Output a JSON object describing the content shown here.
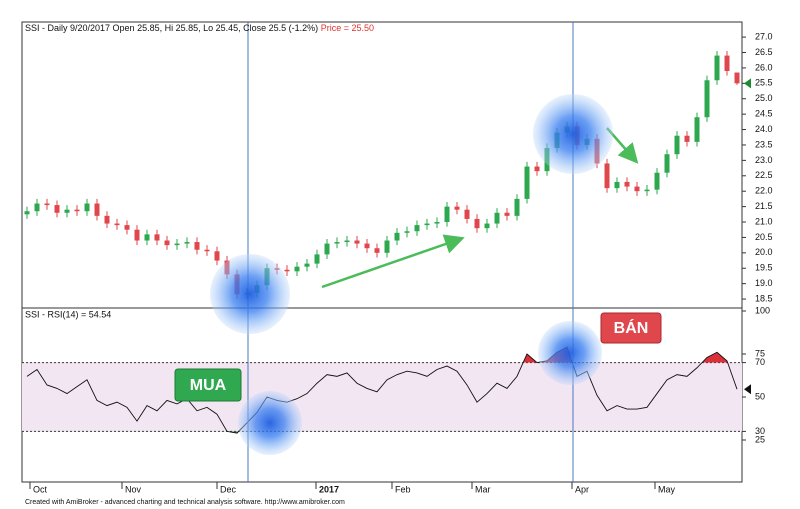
{
  "chart_data": [
    {
      "type": "candlestick",
      "title": "SSI - Daily 9/20/2017 Open 25.85, Hi 25.85, Lo 25.45, Close 25.5 (-1.2%)",
      "subtitle": "Price = 25.50",
      "up_color": "#2ea84f",
      "down_color": "#e0474c",
      "open": [
        21.25,
        21.35,
        21.6,
        21.55,
        21.3,
        21.4,
        21.35,
        21.6,
        21.2,
        20.95,
        20.9,
        20.75,
        20.4,
        20.6,
        20.4,
        20.25,
        20.3,
        20.35,
        20.1,
        20.05,
        19.75,
        19.3,
        18.65,
        18.7,
        18.95,
        19.5,
        19.45,
        19.4,
        19.55,
        19.65,
        19.95,
        20.3,
        20.35,
        20.4,
        20.3,
        20.15,
        20.0,
        20.4,
        20.65,
        20.7,
        20.9,
        20.95,
        21.0,
        21.5,
        21.4,
        21.1,
        20.8,
        20.95,
        21.3,
        21.2,
        21.75,
        22.8,
        22.65,
        23.4,
        23.9,
        24.1,
        23.5,
        23.7,
        22.9,
        22.1,
        22.3,
        22.15,
        22.0,
        22.05,
        22.6,
        23.2,
        23.8,
        23.6,
        24.4,
        25.6,
        26.4,
        25.85
      ],
      "high": [
        21.5,
        21.75,
        21.75,
        21.7,
        21.55,
        21.55,
        21.75,
        21.75,
        21.35,
        21.1,
        21.05,
        20.9,
        20.75,
        20.75,
        20.55,
        20.45,
        20.5,
        20.5,
        20.25,
        20.2,
        19.9,
        19.45,
        18.85,
        19.1,
        19.65,
        19.65,
        19.6,
        19.7,
        19.8,
        20.1,
        20.45,
        20.5,
        20.55,
        20.55,
        20.45,
        20.3,
        20.55,
        20.8,
        20.85,
        21.05,
        21.1,
        21.15,
        21.65,
        21.65,
        21.55,
        21.25,
        21.1,
        21.45,
        21.45,
        21.9,
        22.95,
        22.95,
        23.55,
        24.05,
        24.25,
        24.25,
        23.85,
        23.85,
        23.05,
        22.45,
        22.45,
        22.3,
        22.2,
        22.75,
        23.35,
        23.95,
        23.95,
        24.55,
        25.75,
        26.55,
        26.55,
        25.85
      ],
      "low": [
        21.1,
        21.2,
        21.4,
        21.15,
        21.15,
        21.2,
        21.2,
        21.05,
        20.8,
        20.75,
        20.6,
        20.25,
        20.25,
        20.25,
        20.1,
        20.1,
        20.15,
        19.95,
        19.9,
        19.6,
        19.15,
        18.5,
        18.5,
        18.55,
        18.8,
        19.3,
        19.25,
        19.25,
        19.4,
        19.5,
        19.8,
        20.15,
        20.2,
        20.15,
        20.0,
        19.85,
        19.85,
        20.25,
        20.5,
        20.55,
        20.75,
        20.8,
        20.85,
        21.25,
        20.95,
        20.65,
        20.65,
        20.8,
        21.05,
        21.05,
        21.6,
        22.5,
        22.5,
        23.25,
        23.75,
        23.35,
        23.35,
        22.75,
        21.95,
        21.95,
        22.0,
        21.85,
        21.85,
        21.9,
        22.45,
        23.05,
        23.45,
        23.45,
        24.25,
        25.45,
        25.75,
        25.45
      ],
      "close": [
        21.35,
        21.6,
        21.55,
        21.3,
        21.4,
        21.35,
        21.6,
        21.2,
        20.95,
        20.9,
        20.75,
        20.4,
        20.6,
        20.4,
        20.25,
        20.3,
        20.35,
        20.1,
        20.05,
        19.75,
        19.3,
        18.65,
        18.7,
        18.95,
        19.5,
        19.45,
        19.4,
        19.55,
        19.65,
        19.95,
        20.3,
        20.35,
        20.4,
        20.3,
        20.15,
        20.0,
        20.4,
        20.65,
        20.7,
        20.9,
        20.95,
        21.0,
        21.5,
        21.4,
        21.1,
        20.8,
        20.95,
        21.3,
        21.2,
        21.75,
        22.8,
        22.65,
        23.4,
        23.9,
        24.1,
        23.5,
        23.7,
        22.9,
        22.1,
        22.3,
        22.15,
        22.0,
        22.05,
        22.6,
        23.2,
        23.8,
        23.6,
        24.4,
        25.6,
        26.4,
        25.9,
        25.5
      ],
      "xlim": [
        0,
        72
      ],
      "ylim": [
        18.21,
        27.49
      ],
      "yticks": [
        18.5,
        {
          "value": 19,
          "label": "19.0"
        },
        19.5,
        {
          "value": 20,
          "label": "20.0"
        },
        20.5,
        {
          "value": 21,
          "label": "21.0"
        },
        21.5,
        {
          "value": 22,
          "label": "22.0"
        },
        22.5,
        {
          "value": 23,
          "label": "23.0"
        },
        23.5,
        {
          "value": 24,
          "label": "24.0"
        },
        24.5,
        {
          "value": 25,
          "label": "25.0"
        },
        25.5,
        {
          "value": 26,
          "label": "26.0"
        },
        26.5,
        {
          "value": 27,
          "label": "27.0"
        }
      ],
      "annotations": [
        "MUA",
        "BÁN"
      ]
    },
    {
      "type": "line",
      "title": "SSI - RSI(14) = 54.54",
      "color": "#111111",
      "band": [
        30,
        70
      ],
      "band_color": "#f3e6f3",
      "values": [
        62,
        66,
        57,
        55,
        52,
        56,
        60,
        48,
        45,
        47,
        44,
        36,
        45,
        42,
        48,
        46,
        49,
        42,
        44,
        40,
        30,
        29,
        35,
        41,
        50,
        48,
        47,
        49,
        52,
        58,
        63,
        62,
        64,
        58,
        55,
        53,
        60,
        63,
        65,
        64,
        62,
        66,
        68,
        65,
        57,
        47,
        52,
        58,
        55,
        62,
        75,
        70,
        71,
        76,
        79,
        62,
        65,
        51,
        42,
        45,
        43,
        43,
        44,
        52,
        60,
        63,
        62,
        67,
        73,
        76,
        71,
        54.54
      ],
      "xlim": [
        0,
        72
      ],
      "ylim": [
        0,
        100
      ],
      "yticks": [
        100,
        75,
        70,
        50,
        30,
        25
      ],
      "xticks": [
        {
          "value": 0.8,
          "label": "Oct"
        },
        {
          "value": 10,
          "label": "Nov"
        },
        {
          "value": 19.5,
          "label": "Dec"
        },
        {
          "value": 29.4,
          "label": "2017"
        },
        {
          "value": 37,
          "label": "Feb"
        },
        {
          "value": 45,
          "label": "Mar"
        },
        {
          "value": 55,
          "label": "Apr"
        },
        {
          "value": 63.3,
          "label": "May"
        }
      ],
      "footer": "Created with AmiBroker - advanced charting and technical analysis software. http://www.amibroker.com"
    }
  ]
}
